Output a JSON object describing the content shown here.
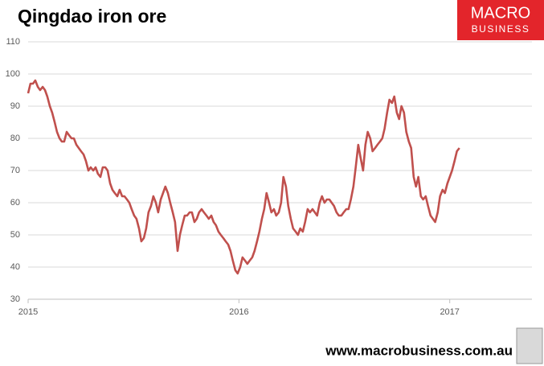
{
  "chart_data": {
    "type": "line",
    "title": "Qingdao iron ore",
    "brand": [
      "MACRO",
      "BUSINESS"
    ],
    "source": "www.macrobusiness.com.au",
    "x": [
      2015,
      2015.011,
      2015.023,
      2015.034,
      2015.046,
      2015.057,
      2015.069,
      2015.08,
      2015.091,
      2015.103,
      2015.114,
      2015.126,
      2015.137,
      2015.149,
      2015.16,
      2015.171,
      2015.183,
      2015.194,
      2015.206,
      2015.217,
      2015.229,
      2015.24,
      2015.251,
      2015.263,
      2015.274,
      2015.286,
      2015.297,
      2015.309,
      2015.32,
      2015.331,
      2015.343,
      2015.354,
      2015.366,
      2015.377,
      2015.389,
      2015.4,
      2015.411,
      2015.423,
      2015.434,
      2015.446,
      2015.457,
      2015.469,
      2015.48,
      2015.491,
      2015.503,
      2015.514,
      2015.526,
      2015.537,
      2015.549,
      2015.56,
      2015.571,
      2015.583,
      2015.594,
      2015.606,
      2015.617,
      2015.629,
      2015.64,
      2015.651,
      2015.663,
      2015.674,
      2015.686,
      2015.697,
      2015.709,
      2015.72,
      2015.731,
      2015.743,
      2015.754,
      2015.766,
      2015.777,
      2015.789,
      2015.8,
      2015.811,
      2015.823,
      2015.834,
      2015.846,
      2015.857,
      2015.869,
      2015.88,
      2015.891,
      2015.903,
      2015.914,
      2015.926,
      2015.937,
      2015.949,
      2015.96,
      2015.971,
      2015.983,
      2015.994,
      2016.006,
      2016.017,
      2016.029,
      2016.04,
      2016.051,
      2016.063,
      2016.074,
      2016.086,
      2016.097,
      2016.109,
      2016.12,
      2016.131,
      2016.143,
      2016.154,
      2016.166,
      2016.177,
      2016.189,
      2016.2,
      2016.211,
      2016.223,
      2016.234,
      2016.246,
      2016.257,
      2016.269,
      2016.28,
      2016.291,
      2016.303,
      2016.314,
      2016.326,
      2016.337,
      2016.349,
      2016.36,
      2016.371,
      2016.383,
      2016.394,
      2016.406,
      2016.417,
      2016.429,
      2016.44,
      2016.451,
      2016.463,
      2016.474,
      2016.486,
      2016.497,
      2016.509,
      2016.52,
      2016.531,
      2016.543,
      2016.554,
      2016.566,
      2016.577,
      2016.589,
      2016.6,
      2016.611,
      2016.623,
      2016.634,
      2016.646,
      2016.657,
      2016.669,
      2016.68,
      2016.691,
      2016.703,
      2016.714,
      2016.726,
      2016.737,
      2016.749,
      2016.76,
      2016.771,
      2016.783,
      2016.794,
      2016.806,
      2016.817,
      2016.829,
      2016.84,
      2016.851,
      2016.863,
      2016.874,
      2016.886,
      2016.897,
      2016.909,
      2016.92,
      2016.931,
      2016.943,
      2016.954,
      2016.966,
      2016.977,
      2016.989,
      2017,
      2017.011,
      2017.023,
      2017.034,
      2017.046
    ],
    "series": [
      {
        "name": "Qingdao iron ore",
        "color": "#c0504d",
        "values": [
          94,
          97,
          97,
          98,
          96,
          95,
          96,
          95,
          93,
          90,
          88,
          85,
          82,
          80,
          79,
          79,
          82,
          81,
          80,
          80,
          78,
          77,
          76,
          75,
          73,
          70,
          71,
          70,
          71,
          69,
          68,
          71,
          71,
          70,
          66,
          64,
          63,
          62,
          64,
          62,
          62,
          61,
          60,
          58,
          56,
          55,
          52,
          48,
          49,
          52,
          57,
          59,
          62,
          60,
          57,
          61,
          63,
          65,
          63,
          60,
          57,
          54,
          45,
          50,
          53,
          56,
          56,
          57,
          57,
          54,
          55,
          57,
          58,
          57,
          56,
          55,
          56,
          54,
          53,
          51,
          50,
          49,
          48,
          47,
          45,
          42,
          39,
          38,
          40,
          43,
          42,
          41,
          42,
          43,
          45,
          48,
          51,
          55,
          58,
          63,
          60,
          57,
          58,
          56,
          57,
          60,
          68,
          65,
          59,
          55,
          52,
          51,
          50,
          52,
          51,
          54,
          58,
          57,
          58,
          57,
          56,
          60,
          62,
          60,
          61,
          61,
          60,
          59,
          57,
          56,
          56,
          57,
          58,
          58,
          61,
          65,
          71,
          78,
          74,
          70,
          78,
          82,
          80,
          76,
          77,
          78,
          79,
          80,
          83,
          88,
          92,
          91,
          93,
          88,
          86,
          90,
          88,
          82,
          79,
          77,
          68,
          65,
          68,
          62,
          61,
          62,
          59,
          56,
          55,
          54,
          57,
          62,
          64,
          63,
          66,
          68,
          70,
          73,
          76,
          77
        ]
      }
    ],
    "xlim": [
      2015,
      2017.39
    ],
    "xticks": [
      2015,
      2016,
      2017
    ],
    "ylim": [
      30,
      110
    ],
    "yticks": [
      30,
      40,
      50,
      60,
      70,
      80,
      90,
      100,
      110
    ],
    "grid": true
  }
}
